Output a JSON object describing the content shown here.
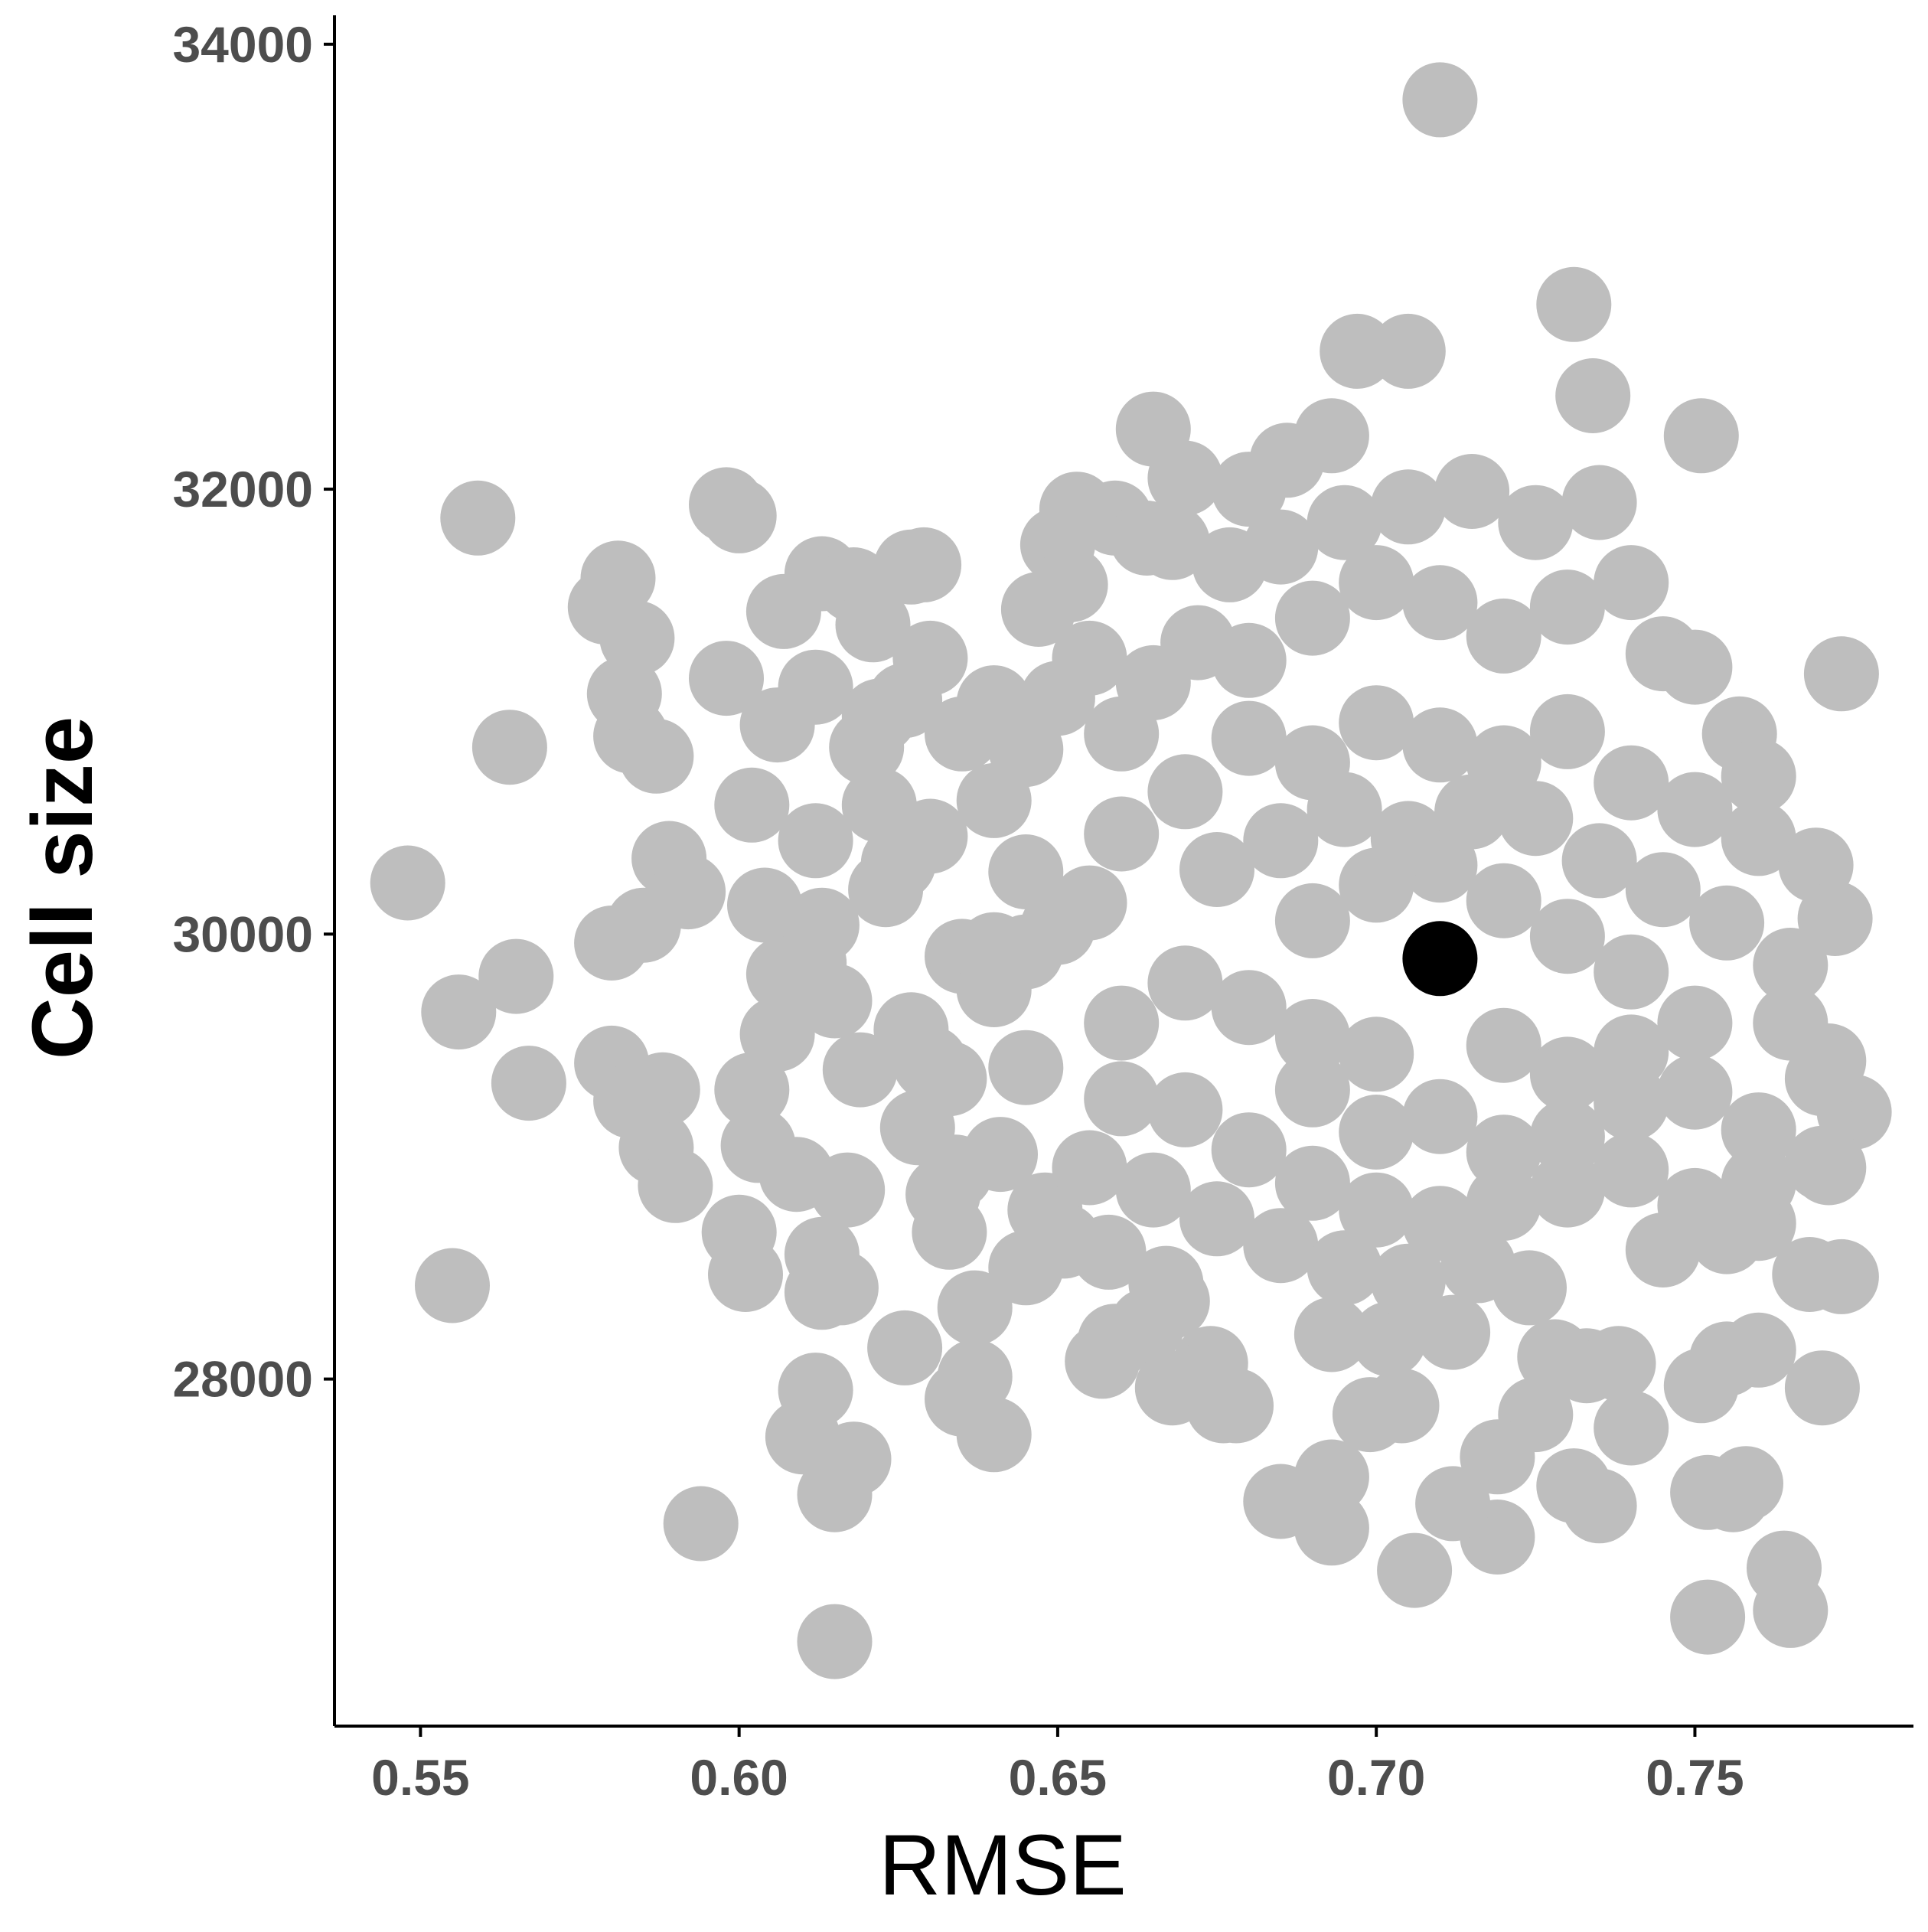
{
  "chart_data": {
    "type": "scatter",
    "xlabel": "RMSE",
    "ylabel": "Cell size",
    "xlim": [
      0.5365,
      0.7843
    ],
    "ylim": [
      26440,
      34130
    ],
    "x_ticks": [
      0.55,
      0.6,
      0.65,
      0.7,
      0.75
    ],
    "x_tick_labels": [
      "0.55",
      "0.60",
      "0.65",
      "0.70",
      "0.75"
    ],
    "y_ticks": [
      28000,
      30000,
      32000,
      34000
    ],
    "y_tick_labels": [
      "28000",
      "30000",
      "32000",
      "34000"
    ],
    "grid": false,
    "legend": "none",
    "colors": {
      "points": "#bebebe",
      "highlight": "#000000",
      "axis": "#000000",
      "tick_text": "#4d4d4d"
    },
    "highlight_point": {
      "x": 0.71,
      "y": 29890
    },
    "series": [
      {
        "color": "#bebebe",
        "points": [
          [
            0.548,
            30230
          ],
          [
            0.555,
            28420
          ],
          [
            0.556,
            29650
          ],
          [
            0.559,
            31870
          ],
          [
            0.564,
            30840
          ],
          [
            0.565,
            29810
          ],
          [
            0.567,
            29330
          ],
          [
            0.594,
            27350
          ],
          [
            0.598,
            31930
          ],
          [
            0.6,
            31880
          ],
          [
            0.598,
            31150
          ],
          [
            0.602,
            30580
          ],
          [
            0.604,
            30130
          ],
          [
            0.579,
            31470
          ],
          [
            0.581,
            31600
          ],
          [
            0.584,
            31330
          ],
          [
            0.582,
            31080
          ],
          [
            0.583,
            30890
          ],
          [
            0.587,
            30800
          ],
          [
            0.589,
            30340
          ],
          [
            0.592,
            30190
          ],
          [
            0.585,
            30040
          ],
          [
            0.58,
            29960
          ],
          [
            0.58,
            29420
          ],
          [
            0.583,
            29250
          ],
          [
            0.588,
            29300
          ],
          [
            0.587,
            29040
          ],
          [
            0.59,
            28870
          ],
          [
            0.6,
            28660
          ],
          [
            0.601,
            28470
          ],
          [
            0.602,
            29300
          ],
          [
            0.603,
            29050
          ],
          [
            0.609,
            28920
          ],
          [
            0.606,
            29550
          ],
          [
            0.612,
            30420
          ],
          [
            0.613,
            30040
          ],
          [
            0.611,
            29870
          ],
          [
            0.615,
            29700
          ],
          [
            0.607,
            29820
          ],
          [
            0.613,
            28560
          ],
          [
            0.613,
            28390
          ],
          [
            0.616,
            28410
          ],
          [
            0.617,
            28850
          ],
          [
            0.619,
            29390
          ],
          [
            0.612,
            27950
          ],
          [
            0.61,
            27740
          ],
          [
            0.615,
            27480
          ],
          [
            0.618,
            27640
          ],
          [
            0.615,
            26820
          ],
          [
            0.607,
            31450
          ],
          [
            0.612,
            31110
          ],
          [
            0.606,
            30940
          ],
          [
            0.613,
            31620
          ],
          [
            0.618,
            31570
          ],
          [
            0.621,
            31390
          ],
          [
            0.627,
            31650
          ],
          [
            0.629,
            31660
          ],
          [
            0.63,
            31240
          ],
          [
            0.626,
            31050
          ],
          [
            0.622,
            30980
          ],
          [
            0.62,
            30840
          ],
          [
            0.622,
            30580
          ],
          [
            0.625,
            30320
          ],
          [
            0.623,
            30200
          ],
          [
            0.63,
            30440
          ],
          [
            0.626,
            28140
          ],
          [
            0.632,
            28830
          ],
          [
            0.634,
            28930
          ],
          [
            0.633,
            28660
          ],
          [
            0.635,
            27910
          ],
          [
            0.637,
            28320
          ],
          [
            0.637,
            28010
          ],
          [
            0.64,
            27750
          ],
          [
            0.645,
            28500
          ],
          [
            0.641,
            29010
          ],
          [
            0.627,
            29570
          ],
          [
            0.63,
            29420
          ],
          [
            0.635,
            29900
          ],
          [
            0.64,
            29930
          ],
          [
            0.645,
            29920
          ],
          [
            0.65,
            30030
          ],
          [
            0.648,
            28760
          ],
          [
            0.651,
            28620
          ],
          [
            0.658,
            28570
          ],
          [
            0.657,
            28080
          ],
          [
            0.659,
            28170
          ],
          [
            0.664,
            28240
          ],
          [
            0.667,
            28430
          ],
          [
            0.668,
            28350
          ],
          [
            0.668,
            27960
          ],
          [
            0.674,
            28070
          ],
          [
            0.676,
            27880
          ],
          [
            0.665,
            32270
          ],
          [
            0.67,
            32050
          ],
          [
            0.668,
            31760
          ],
          [
            0.653,
            31910
          ],
          [
            0.65,
            31750
          ],
          [
            0.659,
            31870
          ],
          [
            0.664,
            31780
          ],
          [
            0.647,
            31460
          ],
          [
            0.652,
            31570
          ],
          [
            0.655,
            31240
          ],
          [
            0.677,
            31660
          ],
          [
            0.68,
            32000
          ],
          [
            0.686,
            32130
          ],
          [
            0.693,
            32240
          ],
          [
            0.697,
            32620
          ],
          [
            0.705,
            32620
          ],
          [
            0.71,
            33750
          ],
          [
            0.731,
            32830
          ],
          [
            0.734,
            32420
          ],
          [
            0.751,
            32240
          ],
          [
            0.735,
            31940
          ],
          [
            0.74,
            31580
          ],
          [
            0.745,
            31260
          ],
          [
            0.75,
            31200
          ],
          [
            0.757,
            30900
          ],
          [
            0.76,
            30710
          ],
          [
            0.769,
            30310
          ],
          [
            0.772,
            30070
          ],
          [
            0.773,
            31170
          ],
          [
            0.771,
            29430
          ],
          [
            0.775,
            29200
          ],
          [
            0.77,
            28970
          ],
          [
            0.771,
            28950
          ],
          [
            0.768,
            28470
          ],
          [
            0.773,
            28460
          ],
          [
            0.77,
            27960
          ],
          [
            0.764,
            27150
          ],
          [
            0.765,
            26960
          ],
          [
            0.752,
            26930
          ],
          [
            0.752,
            27490
          ],
          [
            0.756,
            27480
          ],
          [
            0.758,
            27530
          ],
          [
            0.751,
            27970
          ],
          [
            0.755,
            28090
          ],
          [
            0.76,
            28130
          ],
          [
            0.735,
            27430
          ],
          [
            0.74,
            27780
          ],
          [
            0.731,
            27520
          ],
          [
            0.725,
            27840
          ],
          [
            0.719,
            27290
          ],
          [
            0.719,
            27650
          ],
          [
            0.712,
            27440
          ],
          [
            0.706,
            27140
          ],
          [
            0.704,
            27880
          ],
          [
            0.699,
            27840
          ],
          [
            0.693,
            27560
          ],
          [
            0.693,
            27330
          ],
          [
            0.685,
            27450
          ],
          [
            0.678,
            27880
          ],
          [
            0.673,
            28000
          ],
          [
            0.693,
            28200
          ],
          [
            0.702,
            28180
          ],
          [
            0.712,
            28210
          ],
          [
            0.716,
            28510
          ],
          [
            0.724,
            28410
          ],
          [
            0.728,
            28100
          ],
          [
            0.733,
            28060
          ],
          [
            0.738,
            28070
          ],
          [
            0.69,
            30060
          ],
          [
            0.7,
            30220
          ],
          [
            0.71,
            30310
          ],
          [
            0.72,
            30150
          ],
          [
            0.73,
            29990
          ],
          [
            0.74,
            29830
          ],
          [
            0.69,
            29540
          ],
          [
            0.7,
            29460
          ],
          [
            0.72,
            29500
          ],
          [
            0.73,
            29370
          ],
          [
            0.74,
            29470
          ],
          [
            0.75,
            29600
          ],
          [
            0.66,
            30450
          ],
          [
            0.67,
            30640
          ],
          [
            0.68,
            30880
          ],
          [
            0.69,
            30770
          ],
          [
            0.7,
            30950
          ],
          [
            0.71,
            30850
          ],
          [
            0.72,
            30770
          ],
          [
            0.73,
            30910
          ],
          [
            0.74,
            30680
          ],
          [
            0.75,
            30560
          ],
          [
            0.76,
            30430
          ],
          [
            0.66,
            29600
          ],
          [
            0.67,
            29780
          ],
          [
            0.68,
            29670
          ],
          [
            0.69,
            29300
          ],
          [
            0.7,
            29110
          ],
          [
            0.71,
            29180
          ],
          [
            0.72,
            29020
          ],
          [
            0.73,
            29090
          ],
          [
            0.74,
            29240
          ],
          [
            0.75,
            29290
          ],
          [
            0.76,
            29120
          ],
          [
            0.67,
            29210
          ],
          [
            0.68,
            29030
          ],
          [
            0.69,
            28880
          ],
          [
            0.7,
            28760
          ],
          [
            0.71,
            28700
          ],
          [
            0.72,
            28790
          ],
          [
            0.73,
            28850
          ],
          [
            0.74,
            28940
          ],
          [
            0.75,
            28780
          ],
          [
            0.76,
            28700
          ],
          [
            0.68,
            31230
          ],
          [
            0.69,
            31420
          ],
          [
            0.7,
            31580
          ],
          [
            0.71,
            31490
          ],
          [
            0.72,
            31340
          ],
          [
            0.73,
            31470
          ],
          [
            0.685,
            31740
          ],
          [
            0.695,
            31850
          ],
          [
            0.705,
            31920
          ],
          [
            0.715,
            31990
          ],
          [
            0.725,
            31850
          ],
          [
            0.655,
            30140
          ],
          [
            0.66,
            30900
          ],
          [
            0.665,
            31130
          ],
          [
            0.672,
            31310
          ],
          [
            0.675,
            30290
          ],
          [
            0.685,
            30420
          ],
          [
            0.695,
            30560
          ],
          [
            0.705,
            30430
          ],
          [
            0.715,
            30550
          ],
          [
            0.725,
            30520
          ],
          [
            0.735,
            30330
          ],
          [
            0.745,
            30200
          ],
          [
            0.755,
            30050
          ],
          [
            0.765,
            29860
          ],
          [
            0.765,
            29600
          ],
          [
            0.77,
            29350
          ],
          [
            0.66,
            29260
          ],
          [
            0.655,
            28950
          ],
          [
            0.665,
            28850
          ],
          [
            0.675,
            28720
          ],
          [
            0.685,
            28600
          ],
          [
            0.695,
            28500
          ],
          [
            0.705,
            28440
          ],
          [
            0.745,
            28580
          ],
          [
            0.755,
            28640
          ],
          [
            0.76,
            28880
          ],
          [
            0.645,
            29400
          ],
          [
            0.64,
            29750
          ],
          [
            0.645,
            30280
          ],
          [
            0.64,
            30600
          ],
          [
            0.635,
            30900
          ],
          [
            0.64,
            31040
          ],
          [
            0.65,
            31060
          ],
          [
            0.645,
            30830
          ],
          [
            0.633,
            29350
          ],
          [
            0.628,
            29130
          ]
        ]
      }
    ]
  }
}
